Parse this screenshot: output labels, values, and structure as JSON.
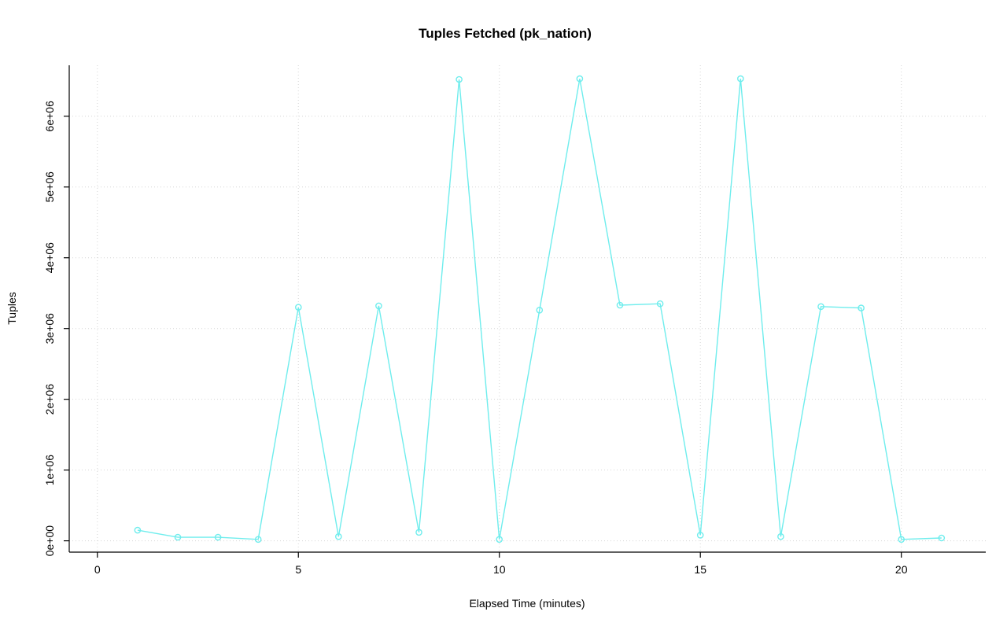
{
  "chart_data": {
    "type": "line",
    "title": "Tuples Fetched (pk_nation)",
    "xlabel": "Elapsed Time (minutes)",
    "ylabel": "Tuples",
    "x": [
      1,
      2,
      3,
      4,
      5,
      6,
      7,
      8,
      9,
      10,
      11,
      12,
      13,
      14,
      15,
      16,
      17,
      18,
      19,
      20,
      21
    ],
    "y": [
      150000,
      50000,
      50000,
      20000,
      3300000,
      60000,
      3320000,
      120000,
      6520000,
      20000,
      3260000,
      6530000,
      3330000,
      3350000,
      80000,
      6530000,
      60000,
      3310000,
      3290000,
      20000,
      40000
    ],
    "xticks": [
      0,
      5,
      10,
      15,
      20
    ],
    "yticks": [
      0,
      1000000,
      2000000,
      3000000,
      4000000,
      5000000,
      6000000
    ],
    "ytick_labels": [
      "0e+00",
      "1e+06",
      "2e+06",
      "3e+06",
      "4e+06",
      "5e+06",
      "6e+06"
    ],
    "xlim": [
      -0.7,
      22.1
    ],
    "ylim": [
      -160000,
      6720000
    ],
    "grid": true,
    "legend": "none",
    "marker": "open-circle",
    "line_color": "#6feded",
    "grid_color": "#d5d5d5",
    "axis_color": "#000000",
    "background_color": "#ffffff"
  }
}
